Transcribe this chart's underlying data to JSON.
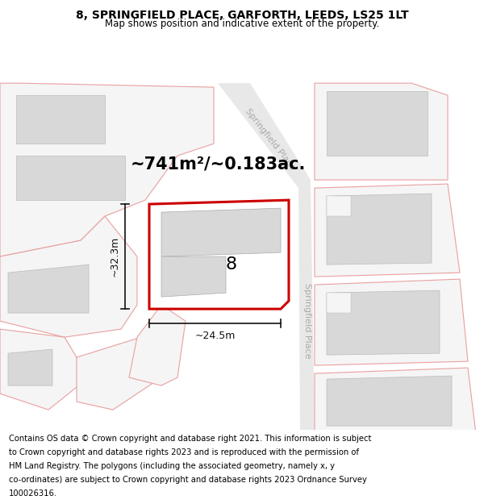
{
  "title": "8, SPRINGFIELD PLACE, GARFORTH, LEEDS, LS25 1LT",
  "subtitle": "Map shows position and indicative extent of the property.",
  "footer_lines": [
    "Contains OS data © Crown copyright and database right 2021. This information is subject",
    "to Crown copyright and database rights 2023 and is reproduced with the permission of",
    "HM Land Registry. The polygons (including the associated geometry, namely x, y",
    "co-ordinates) are subject to Crown copyright and database rights 2023 Ordnance Survey",
    "100026316."
  ],
  "area_label": "~741m²/~0.183ac.",
  "width_label": "~24.5m",
  "height_label": "~32.3m",
  "number_label": "8",
  "map_bg": "#ffffff",
  "road_fill": "#e8e8e8",
  "building_color": "#d8d8d8",
  "plot_outline_color": "#cc0000",
  "neighbor_edge_color": "#e8a0a0",
  "neighbor_face_color": "#fdf0f0",
  "dim_color": "#111111",
  "road_label_color": "#aaaaaa",
  "title_fontsize": 10,
  "subtitle_fontsize": 8.5,
  "footer_fontsize": 7.2,
  "area_fontsize": 15,
  "number_fontsize": 16,
  "dim_fontsize": 9,
  "road_label_fontsize": 8
}
